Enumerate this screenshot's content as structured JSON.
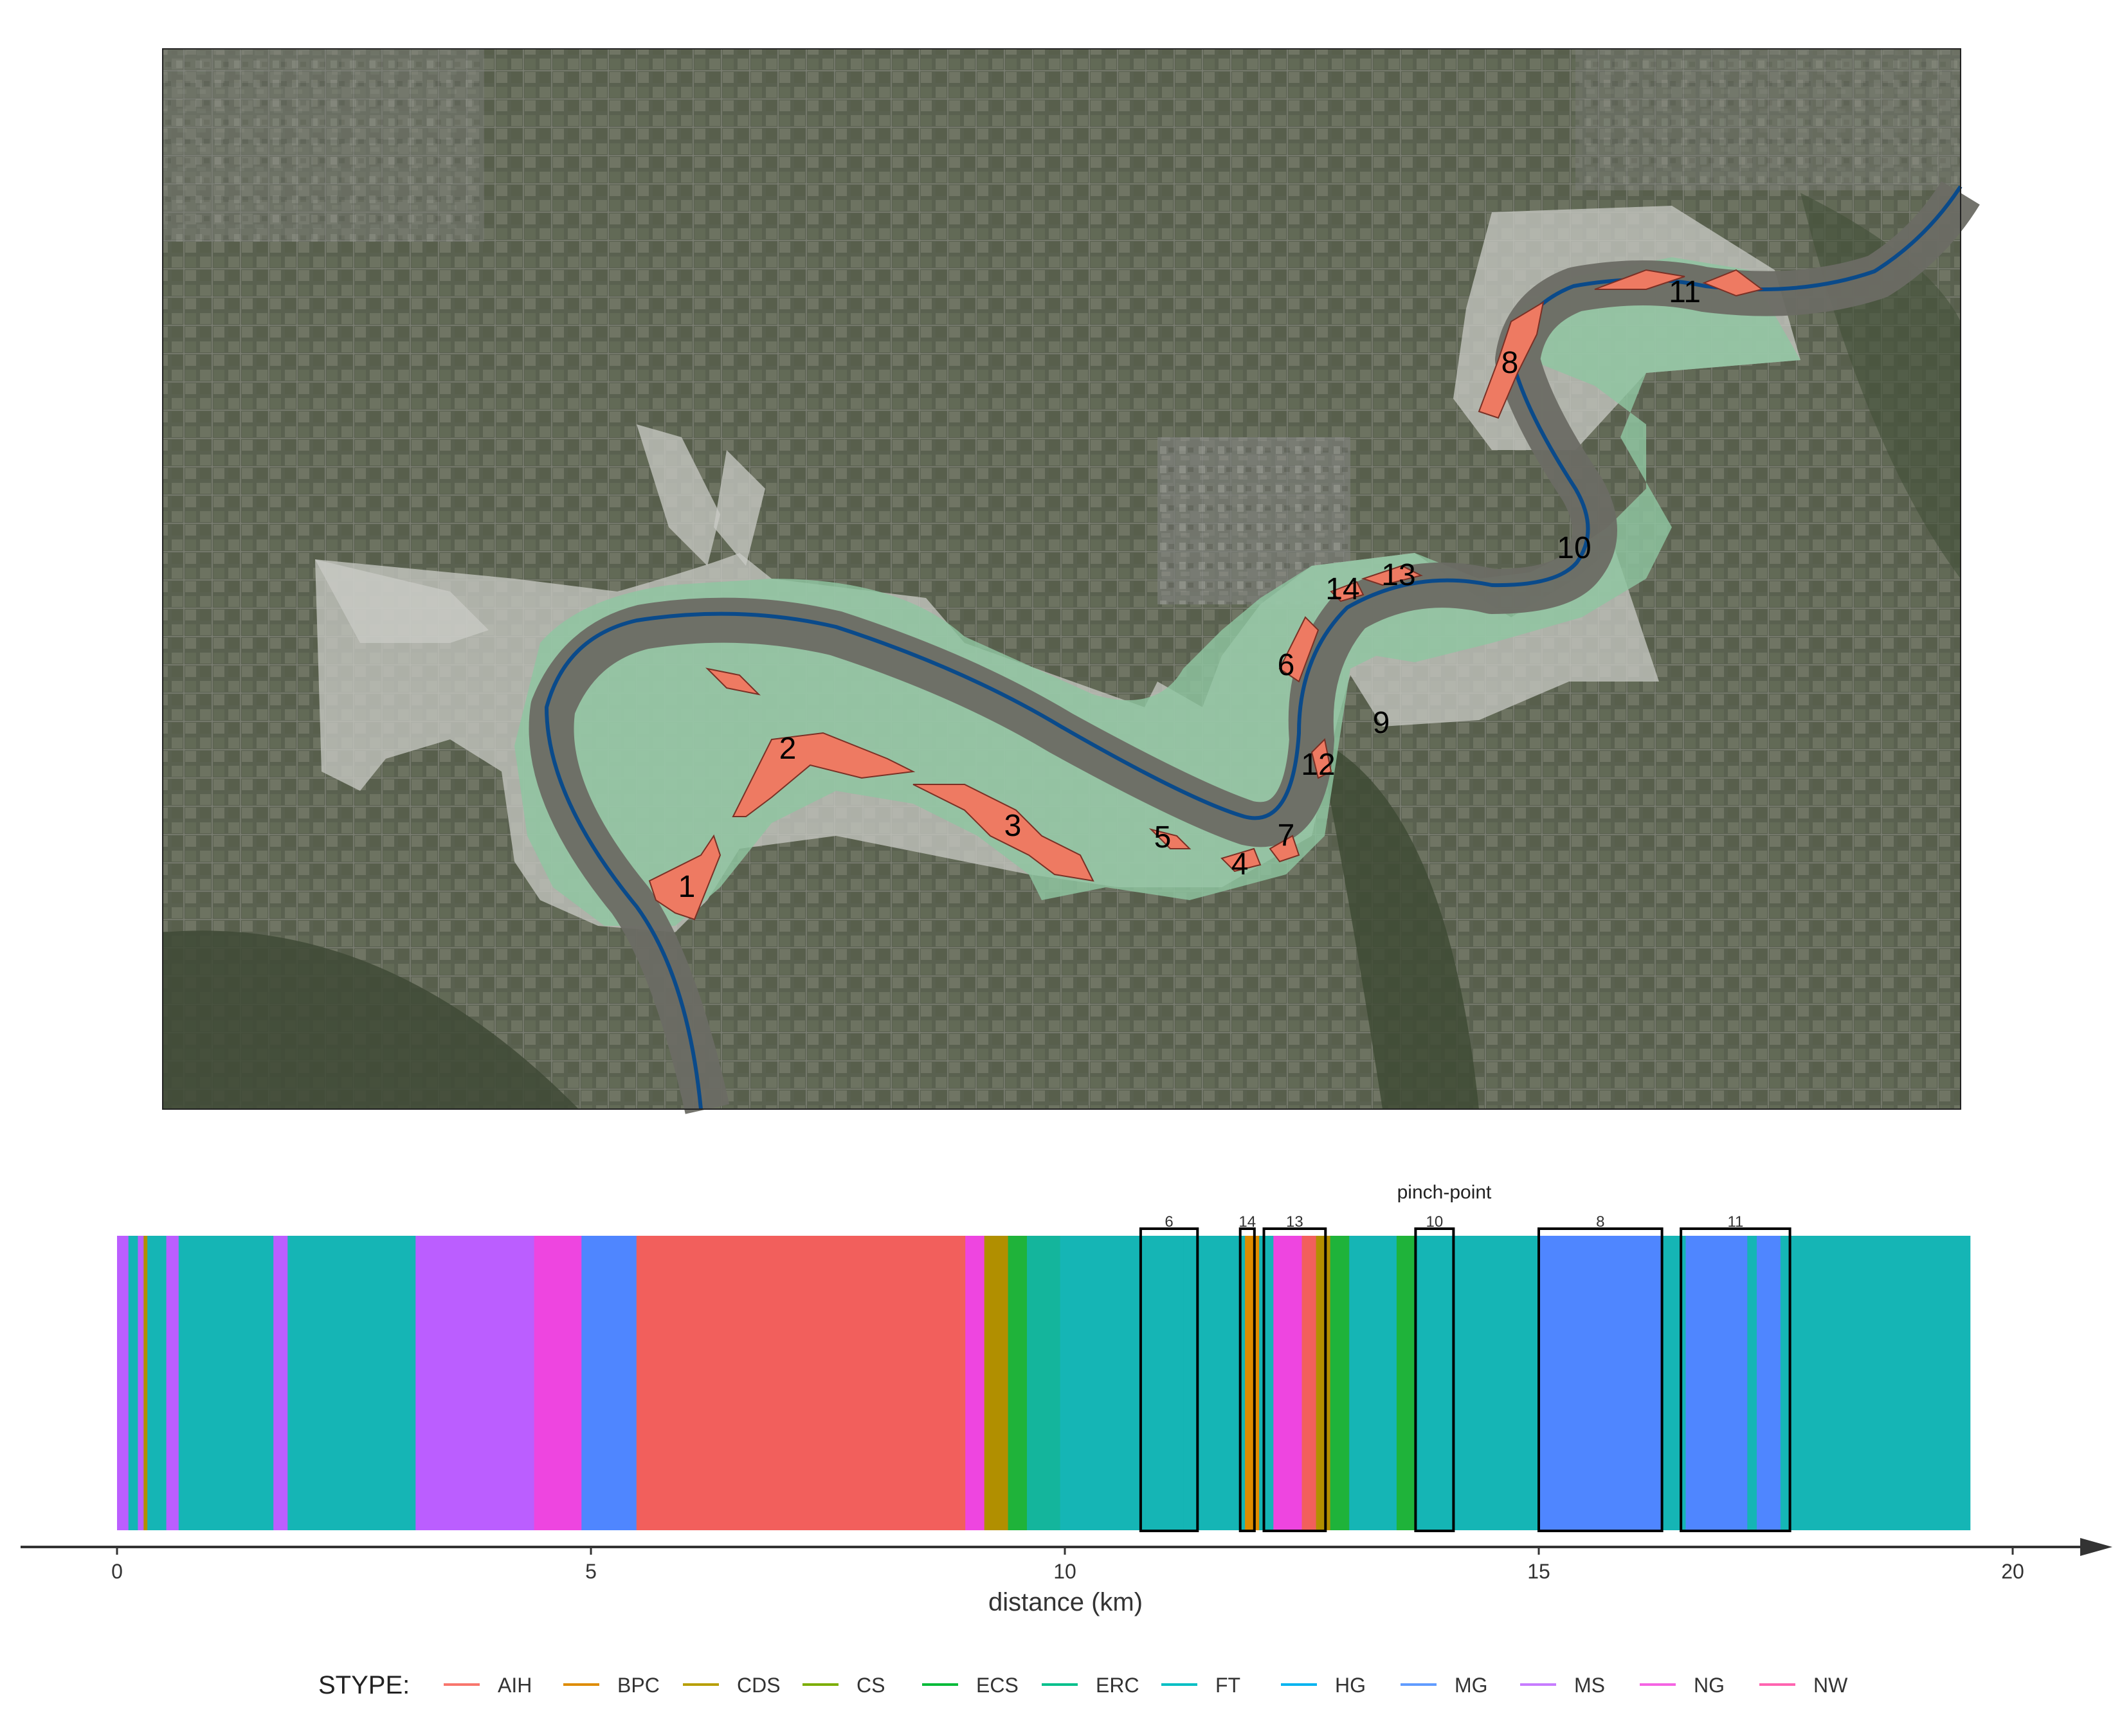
{
  "chart_data": [
    {
      "type": "map",
      "title": "",
      "polygon_labels": [
        "1",
        "2",
        "3",
        "4",
        "5",
        "6",
        "7",
        "8",
        "9",
        "10",
        "11",
        "12",
        "13",
        "14"
      ],
      "colors": {
        "valley": "#9cc9a8",
        "buffer": "#d8d8d8",
        "river_channel": "#6b6b66",
        "river_line": "#0a4a8a",
        "polygon": "#ee7a62"
      }
    },
    {
      "type": "bar",
      "title": "",
      "xlabel": "distance (km)",
      "ylabel": "",
      "xlim": [
        0,
        20
      ],
      "x_ticks": [
        0,
        5,
        10,
        15,
        20
      ],
      "pinch_point_title": "pinch-point",
      "pinch_points": [
        {
          "label": "6",
          "start": 10.8,
          "end": 11.4
        },
        {
          "label": "14",
          "start": 11.85,
          "end": 12.0
        },
        {
          "label": "13",
          "start": 12.1,
          "end": 12.75
        },
        {
          "label": "10",
          "start": 13.7,
          "end": 14.1
        },
        {
          "label": "8",
          "start": 15.0,
          "end": 16.3
        },
        {
          "label": "11",
          "start": 16.5,
          "end": 17.65
        }
      ],
      "segments": [
        {
          "start": 0.0,
          "end": 0.12,
          "stype": "MS"
        },
        {
          "start": 0.12,
          "end": 0.22,
          "stype": "FT"
        },
        {
          "start": 0.22,
          "end": 0.28,
          "stype": "MS"
        },
        {
          "start": 0.28,
          "end": 0.32,
          "stype": "CDS"
        },
        {
          "start": 0.32,
          "end": 0.52,
          "stype": "FT"
        },
        {
          "start": 0.52,
          "end": 0.65,
          "stype": "MS"
        },
        {
          "start": 0.65,
          "end": 1.65,
          "stype": "FT"
        },
        {
          "start": 1.65,
          "end": 1.8,
          "stype": "MS"
        },
        {
          "start": 1.8,
          "end": 3.15,
          "stype": "FT"
        },
        {
          "start": 3.15,
          "end": 4.4,
          "stype": "MS"
        },
        {
          "start": 4.4,
          "end": 4.9,
          "stype": "NG"
        },
        {
          "start": 4.9,
          "end": 5.48,
          "stype": "MG"
        },
        {
          "start": 5.48,
          "end": 8.95,
          "stype": "AIH"
        },
        {
          "start": 8.95,
          "end": 9.15,
          "stype": "NG"
        },
        {
          "start": 9.15,
          "end": 9.4,
          "stype": "CDS"
        },
        {
          "start": 9.4,
          "end": 9.6,
          "stype": "ECS"
        },
        {
          "start": 9.6,
          "end": 9.95,
          "stype": "ERC"
        },
        {
          "start": 9.95,
          "end": 10.85,
          "stype": "FT"
        },
        {
          "start": 10.85,
          "end": 11.25,
          "stype": "FT"
        },
        {
          "start": 11.25,
          "end": 11.9,
          "stype": "FT"
        },
        {
          "start": 11.9,
          "end": 12.05,
          "stype": "BPC"
        },
        {
          "start": 12.05,
          "end": 12.2,
          "stype": "FT"
        },
        {
          "start": 12.2,
          "end": 12.5,
          "stype": "NG"
        },
        {
          "start": 12.5,
          "end": 12.65,
          "stype": "AIH"
        },
        {
          "start": 12.65,
          "end": 12.8,
          "stype": "CDS"
        },
        {
          "start": 12.8,
          "end": 13.0,
          "stype": "ECS"
        },
        {
          "start": 13.0,
          "end": 13.5,
          "stype": "FT"
        },
        {
          "start": 13.5,
          "end": 13.7,
          "stype": "ECS"
        },
        {
          "start": 13.7,
          "end": 15.0,
          "stype": "FT"
        },
        {
          "start": 15.0,
          "end": 16.3,
          "stype": "MG"
        },
        {
          "start": 16.3,
          "end": 16.55,
          "stype": "FT"
        },
        {
          "start": 16.55,
          "end": 17.2,
          "stype": "MG"
        },
        {
          "start": 17.2,
          "end": 17.3,
          "stype": "FT"
        },
        {
          "start": 17.3,
          "end": 17.55,
          "stype": "MG"
        },
        {
          "start": 17.55,
          "end": 19.55,
          "stype": "FT"
        }
      ],
      "legend": {
        "title": "STYPE:",
        "placement": "bottom",
        "items": [
          {
            "name": "AIH",
            "color": "#f8766d"
          },
          {
            "name": "BPC",
            "color": "#de8c00"
          },
          {
            "name": "CDS",
            "color": "#b79f00"
          },
          {
            "name": "CS",
            "color": "#7cae00"
          },
          {
            "name": "ECS",
            "color": "#00ba38"
          },
          {
            "name": "ERC",
            "color": "#00c08b"
          },
          {
            "name": "FT",
            "color": "#00bfc4"
          },
          {
            "name": "HG",
            "color": "#00b4f0"
          },
          {
            "name": "MG",
            "color": "#619cff"
          },
          {
            "name": "MS",
            "color": "#c77cff"
          },
          {
            "name": "NG",
            "color": "#f564e3"
          },
          {
            "name": "NW",
            "color": "#ff64b0"
          }
        ]
      },
      "bar_colors": {
        "AIH": "#f25f5c",
        "BPC": "#de8c00",
        "CDS": "#b18f00",
        "CS": "#6fa800",
        "ECS": "#1fb33a",
        "ERC": "#14b59c",
        "FT": "#15b5b5",
        "HG": "#22aee6",
        "MG": "#4f86ff",
        "MS": "#bb5eff",
        "NG": "#ee45e0",
        "NW": "#ff4fa0"
      }
    }
  ]
}
